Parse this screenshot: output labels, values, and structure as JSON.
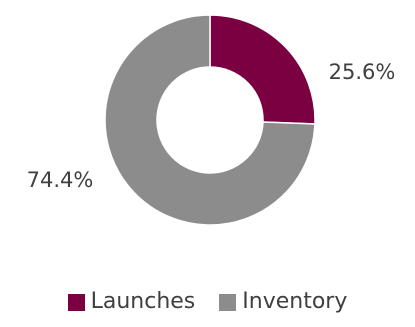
{
  "chart_data": {
    "type": "pie",
    "variant": "doughnut",
    "title": "",
    "slices": [
      {
        "name": "Launches",
        "value": 25.6,
        "label": "25.6%",
        "color": "#7b0041"
      },
      {
        "name": "Inventory",
        "value": 74.4,
        "label": "74.4%",
        "color": "#8c8c8c"
      }
    ],
    "legend": {
      "position": "bottom",
      "items": [
        "Launches",
        "Inventory"
      ]
    }
  }
}
